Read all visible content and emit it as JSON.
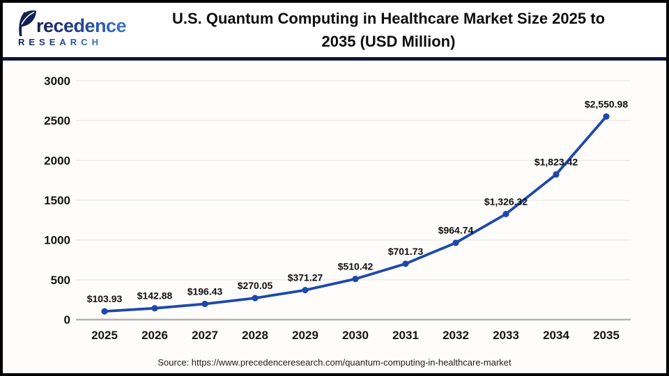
{
  "header": {
    "logo_brand_leaf": "P",
    "logo_brand_rest": "recedence",
    "logo_sub": "RESEARCH",
    "title_line1": "U.S. Quantum Computing in Healthcare Market Size 2025 to",
    "title_line2": "2035 (USD Million)"
  },
  "chart_data": {
    "type": "line",
    "title": "U.S. Quantum Computing in Healthcare Market Size 2025 to 2035 (USD Million)",
    "x": [
      2025,
      2026,
      2027,
      2028,
      2029,
      2030,
      2031,
      2032,
      2033,
      2034,
      2035
    ],
    "values": [
      103.93,
      142.88,
      196.43,
      270.05,
      371.27,
      510.42,
      701.73,
      964.74,
      1326.32,
      1823.42,
      2550.98
    ],
    "point_labels": [
      "$103.93",
      "$142.88",
      "$196.43",
      "$270.05",
      "$371.27",
      "$510.42",
      "$701.73",
      "$964.74",
      "$1,326.32",
      "$1,823.42",
      "$2,550.98"
    ],
    "xlabel": "",
    "ylabel": "",
    "ylim": [
      0,
      3000
    ],
    "yticks": [
      0,
      500,
      1000,
      1500,
      2000,
      2500,
      3000
    ],
    "grid": true,
    "legend": "none",
    "colors": {
      "line": "#1e48ac",
      "marker": "#1e48ac",
      "grid": "#e9e9e9",
      "axis_line": "#b3b3b3",
      "tick_text": "#141414",
      "label_text": "#111111",
      "divider_navy": "#0e1540",
      "logo_dark": "#14204f",
      "logo_light": "#3b7ad1"
    }
  },
  "footer": {
    "source": "Source: https://www.precedenceresearch.com/quantum-computing-in-healthcare-market"
  }
}
